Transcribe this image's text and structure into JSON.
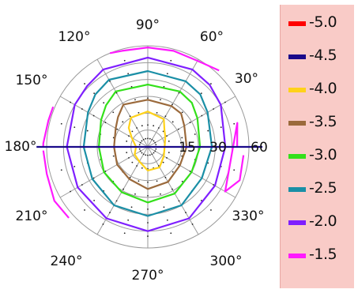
{
  "chart_data": {
    "type": "polar-contour",
    "title": "",
    "angle_tick_labels": [
      "30°",
      "60°",
      "90°",
      "120°",
      "150°",
      "180°",
      "210°",
      "240°",
      "270°",
      "300°",
      "330°"
    ],
    "radius_tick_labels": [
      "15",
      "30",
      "60"
    ],
    "radius_range": [
      0,
      60
    ],
    "grid": true,
    "legend_position": "right",
    "levels": [
      {
        "value": -5.0,
        "label": "-5.0",
        "color": "#ff0000"
      },
      {
        "value": -4.5,
        "label": "-4.5",
        "color": "#1a0a8a"
      },
      {
        "value": -4.0,
        "label": "-4.0",
        "color": "#ffd21a"
      },
      {
        "value": -3.5,
        "label": "-3.5",
        "color": "#9b6a3c"
      },
      {
        "value": -3.0,
        "label": "-3.0",
        "color": "#33e01a"
      },
      {
        "value": -2.5,
        "label": "-2.5",
        "color": "#1a8fa6"
      },
      {
        "value": -2.0,
        "label": "-2.0",
        "color": "#7f1fff"
      },
      {
        "value": -1.5,
        "label": "-1.5",
        "color": "#ff1aff"
      }
    ],
    "contours": [
      {
        "level": -4.0,
        "points": [
          [
            0,
            10
          ],
          [
            30,
            12
          ],
          [
            45,
            14
          ],
          [
            60,
            19
          ],
          [
            90,
            21
          ],
          [
            120,
            20
          ],
          [
            135,
            16
          ],
          [
            150,
            11
          ],
          [
            180,
            7
          ],
          [
            210,
            9
          ],
          [
            240,
            10
          ],
          [
            270,
            14
          ],
          [
            300,
            14
          ],
          [
            330,
            11
          ],
          [
            360,
            10
          ]
        ]
      },
      {
        "level": -3.5,
        "points": [
          [
            0,
            23
          ],
          [
            30,
            25
          ],
          [
            45,
            28
          ],
          [
            60,
            28
          ],
          [
            90,
            28
          ],
          [
            120,
            29
          ],
          [
            135,
            25
          ],
          [
            150,
            22
          ],
          [
            180,
            20
          ],
          [
            210,
            21
          ],
          [
            240,
            22
          ],
          [
            270,
            25
          ],
          [
            300,
            24
          ],
          [
            330,
            22
          ],
          [
            360,
            23
          ]
        ]
      },
      {
        "level": -3.0,
        "points": [
          [
            0,
            31
          ],
          [
            30,
            34
          ],
          [
            45,
            37
          ],
          [
            60,
            38
          ],
          [
            90,
            37
          ],
          [
            120,
            38
          ],
          [
            135,
            35
          ],
          [
            150,
            32
          ],
          [
            180,
            29
          ],
          [
            210,
            30
          ],
          [
            240,
            31
          ],
          [
            270,
            33
          ],
          [
            300,
            32
          ],
          [
            330,
            30
          ],
          [
            360,
            31
          ]
        ]
      },
      {
        "level": -2.5,
        "points": [
          [
            0,
            38
          ],
          [
            30,
            41
          ],
          [
            45,
            44
          ],
          [
            60,
            45
          ],
          [
            90,
            45
          ],
          [
            120,
            46
          ],
          [
            135,
            44
          ],
          [
            150,
            41
          ],
          [
            180,
            38
          ],
          [
            210,
            38
          ],
          [
            240,
            40
          ],
          [
            270,
            41
          ],
          [
            300,
            40
          ],
          [
            330,
            37
          ],
          [
            360,
            38
          ]
        ]
      },
      {
        "level": -2.0,
        "points": [
          [
            0,
            46
          ],
          [
            30,
            50
          ],
          [
            45,
            52
          ],
          [
            60,
            53
          ],
          [
            90,
            53
          ],
          [
            120,
            53
          ],
          [
            135,
            51
          ],
          [
            150,
            50
          ],
          [
            180,
            48
          ],
          [
            210,
            48
          ],
          [
            240,
            49
          ],
          [
            270,
            50
          ],
          [
            300,
            49
          ],
          [
            330,
            46
          ],
          [
            360,
            46
          ]
        ]
      },
      {
        "level": -1.5,
        "segments": [
          [
            [
              47,
              62
            ],
            [
              60,
              59
            ],
            [
              75,
              59
            ],
            [
              90,
              59
            ],
            [
              105,
              59
            ],
            [
              112,
              60
            ]
          ],
          [
            [
              157,
              61
            ],
            [
              165,
              61
            ],
            [
              178,
              62
            ],
            [
              180,
              62
            ]
          ],
          [
            [
              182,
              62
            ],
            [
              195,
              62
            ],
            [
              210,
              64
            ],
            [
              222,
              63
            ]
          ],
          [
            [
              0,
              53
            ],
            [
              15,
              55
            ],
            [
              330,
              53
            ],
            [
              340,
              58
            ],
            [
              355,
              57
            ]
          ]
        ]
      }
    ],
    "baseline_angle": 0,
    "baseline_color": "#1a0a8a"
  }
}
